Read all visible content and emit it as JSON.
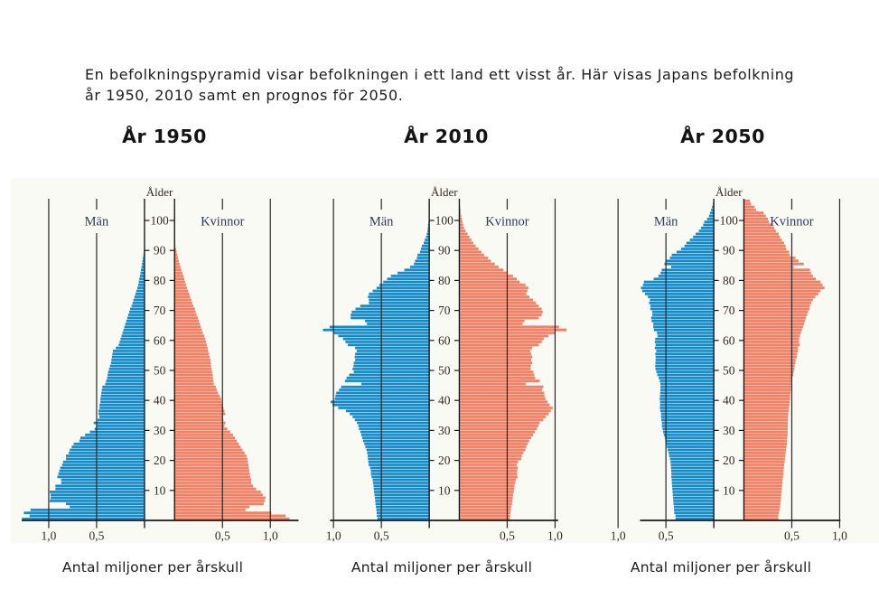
{
  "intro": {
    "line1": "En befolkningspyramid visar befolkningen i ett land ett visst år. Här visas Japans befolkning",
    "line2": "år 1950, 2010 samt en prognos för 2050."
  },
  "colors": {
    "male_bar": "#1489c8",
    "male_bar_light": "#a8d6ec",
    "female_bar": "#f08066",
    "female_bar_light": "#f6bcab",
    "axis_line": "#1a1a1a",
    "grid_line": "#2e2e2e",
    "chart_text": "#342a24",
    "sex_label_text": "#2e3a5c",
    "panel_background": "#fafaf4",
    "page_background": "#ffffff"
  },
  "chart_data": [
    {
      "type": "bar",
      "orientation": "population-pyramid",
      "title": "År 1950",
      "xlabel": "Antal miljoner per årskull",
      "age_axis_label": "Ålder",
      "age_tick_labels": [
        "10",
        "20",
        "30",
        "40",
        "50",
        "60",
        "70",
        "80",
        "90",
        "100"
      ],
      "x_tick_labels_left": [
        "1,0",
        "0,5"
      ],
      "x_tick_labels_right": [
        "0,5",
        "1,0"
      ],
      "xlim_millions": [
        0,
        1.3
      ],
      "age_range": [
        0,
        100
      ],
      "grid": true,
      "series": [
        {
          "name": "Män",
          "values": [
            1.28,
            1.2,
            1.26,
            1.19,
            0.78,
            0.82,
            0.99,
            0.98,
            0.98,
            0.99,
            0.93,
            0.93,
            0.87,
            0.87,
            0.91,
            0.9,
            0.89,
            0.88,
            0.86,
            0.85,
            0.82,
            0.82,
            0.79,
            0.78,
            0.76,
            0.74,
            0.68,
            0.67,
            0.62,
            0.57,
            0.52,
            0.5,
            0.53,
            0.49,
            0.47,
            0.48,
            0.48,
            0.47,
            0.47,
            0.46,
            0.46,
            0.455,
            0.45,
            0.445,
            0.44,
            0.41,
            0.4,
            0.39,
            0.385,
            0.38,
            0.37,
            0.36,
            0.35,
            0.345,
            0.34,
            0.335,
            0.33,
            0.3,
            0.27,
            0.26,
            0.25,
            0.24,
            0.23,
            0.22,
            0.21,
            0.2,
            0.19,
            0.18,
            0.17,
            0.16,
            0.15,
            0.135,
            0.125,
            0.115,
            0.105,
            0.095,
            0.085,
            0.075,
            0.065,
            0.06,
            0.054,
            0.047,
            0.042,
            0.037,
            0.031,
            0.026,
            0.021,
            0.016,
            0.011,
            0.006
          ]
        },
        {
          "name": "Kvinnor",
          "values": [
            1.2,
            1.16,
            1.01,
            0.74,
            0.78,
            0.93,
            0.94,
            0.95,
            0.92,
            0.9,
            0.85,
            0.82,
            0.8,
            0.8,
            0.79,
            0.785,
            0.78,
            0.775,
            0.77,
            0.765,
            0.76,
            0.75,
            0.73,
            0.71,
            0.69,
            0.67,
            0.65,
            0.63,
            0.61,
            0.58,
            0.55,
            0.52,
            0.53,
            0.51,
            0.5,
            0.53,
            0.52,
            0.51,
            0.5,
            0.49,
            0.485,
            0.47,
            0.455,
            0.44,
            0.43,
            0.41,
            0.405,
            0.4,
            0.398,
            0.392,
            0.386,
            0.38,
            0.378,
            0.374,
            0.365,
            0.36,
            0.35,
            0.345,
            0.335,
            0.328,
            0.32,
            0.31,
            0.295,
            0.284,
            0.273,
            0.264,
            0.253,
            0.242,
            0.23,
            0.22,
            0.213,
            0.195,
            0.183,
            0.174,
            0.163,
            0.152,
            0.141,
            0.13,
            0.118,
            0.11,
            0.101,
            0.091,
            0.081,
            0.071,
            0.061,
            0.052,
            0.043,
            0.035,
            0.028,
            0.021,
            0.014,
            0.008,
            0.004
          ]
        }
      ]
    },
    {
      "type": "bar",
      "orientation": "population-pyramid",
      "title": "År 2010",
      "xlabel": "Antal miljoner per årskull",
      "age_axis_label": "Ålder",
      "age_tick_labels": [
        "10",
        "20",
        "30",
        "40",
        "50",
        "60",
        "70",
        "80",
        "90",
        "100"
      ],
      "x_tick_labels_left": [
        "1,0",
        "0,5"
      ],
      "x_tick_labels_right": [
        "0,5",
        "1,0"
      ],
      "xlim_millions": [
        0,
        1.15
      ],
      "age_range": [
        0,
        104
      ],
      "grid": true,
      "series": [
        {
          "name": "Män",
          "values": [
            0.541,
            0.546,
            0.549,
            0.552,
            0.557,
            0.561,
            0.564,
            0.567,
            0.572,
            0.576,
            0.579,
            0.582,
            0.587,
            0.591,
            0.602,
            0.61,
            0.61,
            0.617,
            0.633,
            0.636,
            0.64,
            0.643,
            0.648,
            0.655,
            0.667,
            0.678,
            0.69,
            0.7,
            0.71,
            0.72,
            0.733,
            0.741,
            0.754,
            0.777,
            0.8,
            0.83,
            0.87,
            0.95,
            1.01,
            1.03,
            0.986,
            0.979,
            0.971,
            0.943,
            0.92,
            0.71,
            0.88,
            0.864,
            0.836,
            0.788,
            0.8,
            0.79,
            0.788,
            0.774,
            0.778,
            0.773,
            0.757,
            0.774,
            0.85,
            0.875,
            0.9,
            0.95,
            1.005,
            1.11,
            1.04,
            0.65,
            0.67,
            0.82,
            0.82,
            0.81,
            0.77,
            0.72,
            0.63,
            0.63,
            0.64,
            0.63,
            0.59,
            0.55,
            0.52,
            0.48,
            0.44,
            0.4,
            0.33,
            0.26,
            0.2,
            0.16,
            0.148,
            0.129,
            0.122,
            0.096,
            0.086,
            0.077,
            0.058,
            0.047,
            0.034,
            0.026,
            0.018,
            0.015,
            0.012,
            0.008
          ]
        },
        {
          "name": "Kvinnor",
          "values": [
            0.528,
            0.53,
            0.532,
            0.538,
            0.542,
            0.549,
            0.553,
            0.558,
            0.561,
            0.568,
            0.572,
            0.576,
            0.583,
            0.589,
            0.607,
            0.604,
            0.604,
            0.61,
            0.599,
            0.614,
            0.645,
            0.652,
            0.668,
            0.69,
            0.7,
            0.713,
            0.73,
            0.75,
            0.77,
            0.79,
            0.81,
            0.825,
            0.84,
            0.877,
            0.903,
            0.935,
            0.954,
            0.974,
            0.942,
            0.922,
            0.9,
            0.889,
            0.887,
            0.863,
            0.877,
            0.695,
            0.84,
            0.792,
            0.783,
            0.773,
            0.745,
            0.747,
            0.76,
            0.75,
            0.76,
            0.75,
            0.74,
            0.76,
            0.83,
            0.86,
            0.88,
            0.93,
            1.0,
            1.12,
            1.04,
            0.66,
            0.68,
            0.83,
            0.86,
            0.87,
            0.86,
            0.83,
            0.8,
            0.77,
            0.73,
            0.7,
            0.71,
            0.72,
            0.69,
            0.63,
            0.6,
            0.56,
            0.5,
            0.46,
            0.41,
            0.37,
            0.33,
            0.3,
            0.26,
            0.23,
            0.2,
            0.17,
            0.145,
            0.125,
            0.105,
            0.085,
            0.066,
            0.049,
            0.04,
            0.033,
            0.027,
            0.02,
            0.015,
            0.012,
            0.008
          ]
        }
      ]
    },
    {
      "type": "bar",
      "orientation": "population-pyramid",
      "title": "År 2050",
      "xlabel": "Antal miljoner per årskull",
      "age_axis_label": "Ålder",
      "age_tick_labels": [
        "10",
        "20",
        "30",
        "40",
        "50",
        "60",
        "70",
        "80",
        "90",
        "100"
      ],
      "x_tick_labels_left": [
        "1,0",
        "0,5"
      ],
      "x_tick_labels_right": [
        "0,5",
        "1,0"
      ],
      "xlim_millions": [
        0,
        1.1
      ],
      "age_range": [
        0,
        106
      ],
      "grid": true,
      "series": [
        {
          "name": "Män",
          "values": [
            0.4,
            0.4,
            0.413,
            0.415,
            0.415,
            0.421,
            0.423,
            0.426,
            0.428,
            0.431,
            0.433,
            0.436,
            0.438,
            0.44,
            0.443,
            0.443,
            0.445,
            0.447,
            0.449,
            0.452,
            0.457,
            0.466,
            0.471,
            0.481,
            0.49,
            0.499,
            0.507,
            0.512,
            0.522,
            0.529,
            0.535,
            0.542,
            0.542,
            0.548,
            0.551,
            0.551,
            0.558,
            0.563,
            0.561,
            0.561,
            0.565,
            0.562,
            0.56,
            0.558,
            0.557,
            0.558,
            0.565,
            0.575,
            0.59,
            0.6,
            0.61,
            0.612,
            0.61,
            0.608,
            0.608,
            0.611,
            0.601,
            0.616,
            0.608,
            0.616,
            0.611,
            0.587,
            0.594,
            0.625,
            0.633,
            0.631,
            0.65,
            0.654,
            0.642,
            0.642,
            0.663,
            0.662,
            0.676,
            0.667,
            0.688,
            0.718,
            0.748,
            0.761,
            0.739,
            0.731,
            0.628,
            0.578,
            0.555,
            0.544,
            0.445,
            0.516,
            0.5,
            0.458,
            0.439,
            0.389,
            0.342,
            0.306,
            0.286,
            0.25,
            0.216,
            0.189,
            0.156,
            0.133,
            0.111,
            0.1,
            0.07,
            0.05,
            0.04,
            0.028,
            0.018,
            0.01
          ]
        },
        {
          "name": "Kvinnor",
          "values": [
            0.36,
            0.36,
            0.366,
            0.372,
            0.378,
            0.38,
            0.384,
            0.387,
            0.39,
            0.392,
            0.396,
            0.398,
            0.402,
            0.404,
            0.408,
            0.413,
            0.413,
            0.417,
            0.42,
            0.424,
            0.428,
            0.432,
            0.436,
            0.44,
            0.444,
            0.448,
            0.45,
            0.453,
            0.455,
            0.458,
            0.458,
            0.459,
            0.459,
            0.46,
            0.46,
            0.462,
            0.468,
            0.47,
            0.475,
            0.477,
            0.482,
            0.482,
            0.487,
            0.489,
            0.492,
            0.493,
            0.499,
            0.5,
            0.516,
            0.52,
            0.527,
            0.53,
            0.537,
            0.54,
            0.553,
            0.556,
            0.563,
            0.564,
            0.583,
            0.576,
            0.577,
            0.585,
            0.595,
            0.606,
            0.617,
            0.627,
            0.636,
            0.648,
            0.66,
            0.67,
            0.685,
            0.69,
            0.704,
            0.72,
            0.746,
            0.776,
            0.8,
            0.842,
            0.82,
            0.8,
            0.75,
            0.72,
            0.7,
            0.69,
            0.52,
            0.625,
            0.569,
            0.538,
            0.478,
            0.471,
            0.443,
            0.435,
            0.419,
            0.396,
            0.377,
            0.364,
            0.333,
            0.317,
            0.298,
            0.261,
            0.25,
            0.229,
            0.206,
            0.127,
            0.11,
            0.075,
            0.063
          ]
        }
      ]
    }
  ]
}
